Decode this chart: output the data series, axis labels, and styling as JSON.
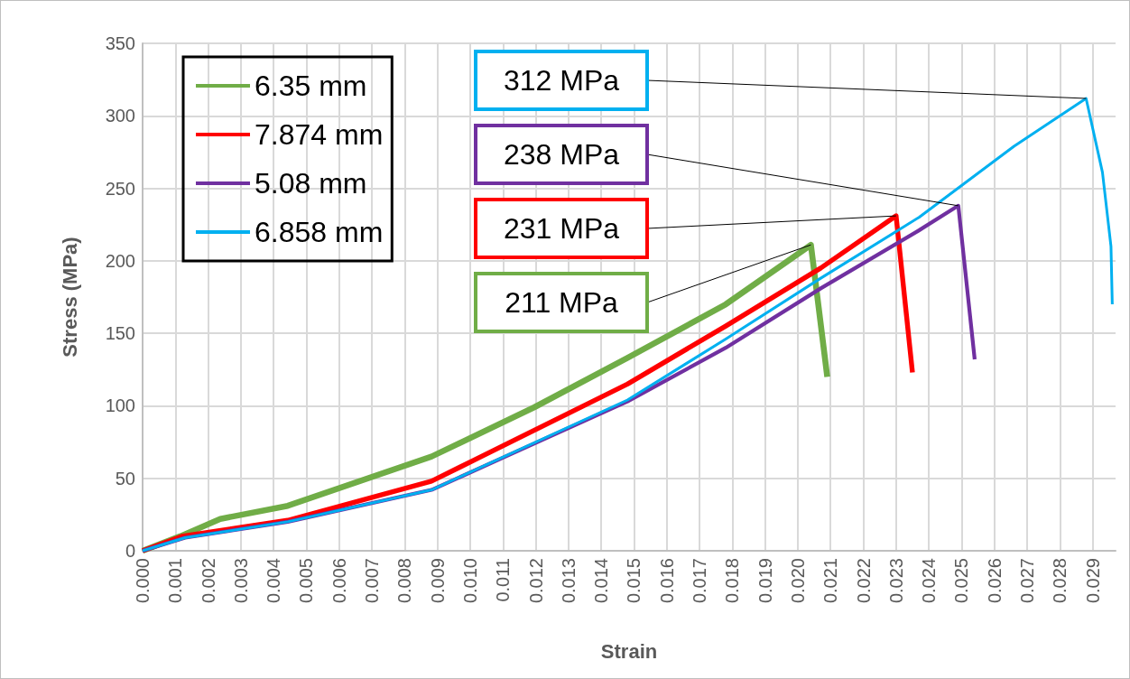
{
  "chart_data": {
    "type": "line",
    "xlabel": "Strain",
    "ylabel": "Stress (MPa)",
    "xlim": [
      0,
      0.0297
    ],
    "ylim": [
      0,
      350
    ],
    "yticks": [
      0,
      50,
      100,
      150,
      200,
      250,
      300,
      350
    ],
    "xticks": [
      {
        "value": 0,
        "label": "0.000"
      },
      0.001,
      0.002,
      0.003,
      0.004,
      0.005,
      0.006,
      0.007,
      0.008,
      0.009,
      {
        "value": 0.01,
        "label": "0.010"
      },
      0.011,
      0.012,
      0.013,
      0.014,
      0.015,
      0.016,
      0.017,
      0.018,
      0.019,
      {
        "value": 0.02,
        "label": "0.020"
      },
      0.021,
      0.022,
      0.023,
      0.024,
      0.025,
      0.026,
      0.027,
      0.028,
      0.029
    ],
    "grid": true,
    "legend": "top left",
    "series": [
      {
        "name": "6.35 mm",
        "color": "#70ad47",
        "x": [
          0,
          0.00115,
          0.00237,
          0.00443,
          0.00882,
          0.01196,
          0.0148,
          0.0178,
          0.0204,
          0.0209
        ],
        "values": [
          0,
          10,
          22,
          31,
          65,
          99,
          133,
          170,
          211,
          120
        ]
      },
      {
        "name": "7.874 mm",
        "color": "#ff0000",
        "x": [
          0,
          0.0012,
          0.00443,
          0.00882,
          0.0148,
          0.0178,
          0.0207,
          0.023,
          0.0235
        ],
        "values": [
          0,
          10,
          21,
          48,
          115,
          155,
          195,
          231,
          123
        ]
      },
      {
        "name": "5.08 mm",
        "color": "#7030a0",
        "x": [
          0,
          0.0013,
          0.00443,
          0.00882,
          0.0148,
          0.0178,
          0.0207,
          0.0237,
          0.0249,
          0.0254
        ],
        "values": [
          0,
          9,
          20,
          42,
          103,
          140,
          181,
          221,
          238,
          132
        ]
      },
      {
        "name": "6.858 mm",
        "color": "#00b0f0",
        "x": [
          0,
          0.0013,
          0.00443,
          0.00882,
          0.0148,
          0.0178,
          0.0207,
          0.0237,
          0.0266,
          0.0288,
          0.0293,
          0.02956,
          0.0296
        ],
        "values": [
          0,
          9,
          20,
          42,
          104,
          146,
          188,
          230,
          279,
          312,
          261,
          210,
          170
        ]
      }
    ],
    "annotations": [
      {
        "text": "312 MPa",
        "x": 0.0288,
        "y": 312
      },
      {
        "text": "238 MPa",
        "x": 0.0249,
        "y": 238
      },
      {
        "text": "231 MPa",
        "x": 0.023,
        "y": 231
      },
      {
        "text": "211 MPa",
        "x": 0.0204,
        "y": 211
      }
    ]
  }
}
